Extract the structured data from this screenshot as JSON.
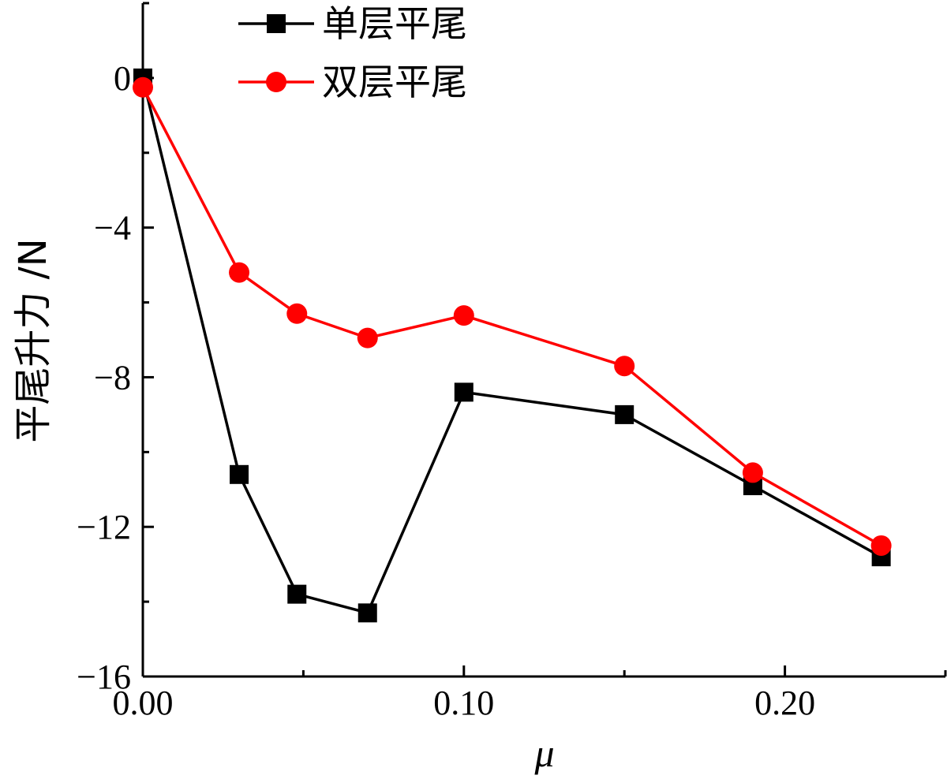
{
  "chart_data": {
    "type": "line",
    "xlabel": "μ",
    "ylabel": "平尾升力 /N",
    "xlim": [
      0.0,
      0.25
    ],
    "ylim": [
      -16,
      2
    ],
    "x_ticks": [
      "0.00",
      "0.10",
      "0.20"
    ],
    "x_tick_values": [
      0.0,
      0.1,
      0.2
    ],
    "y_ticks": [
      "0",
      "-4",
      "-8",
      "-12",
      "-16"
    ],
    "y_tick_values": [
      0,
      -4,
      -8,
      -12,
      -16
    ],
    "grid": false,
    "legend_position": "top-left",
    "series": [
      {
        "name": "单层平尾",
        "color": "#000000",
        "marker": "square",
        "x": [
          0.0,
          0.03,
          0.048,
          0.07,
          0.1,
          0.15,
          0.19,
          0.23
        ],
        "y": [
          0.0,
          -10.6,
          -13.8,
          -14.3,
          -8.4,
          -9.0,
          -10.9,
          -12.8
        ]
      },
      {
        "name": "双层平尾",
        "color": "#ff0000",
        "marker": "circle",
        "x": [
          0.0,
          0.03,
          0.048,
          0.07,
          0.1,
          0.15,
          0.19,
          0.23
        ],
        "y": [
          -0.25,
          -5.2,
          -6.3,
          -6.95,
          -6.35,
          -7.7,
          -10.55,
          -12.5
        ]
      }
    ]
  }
}
